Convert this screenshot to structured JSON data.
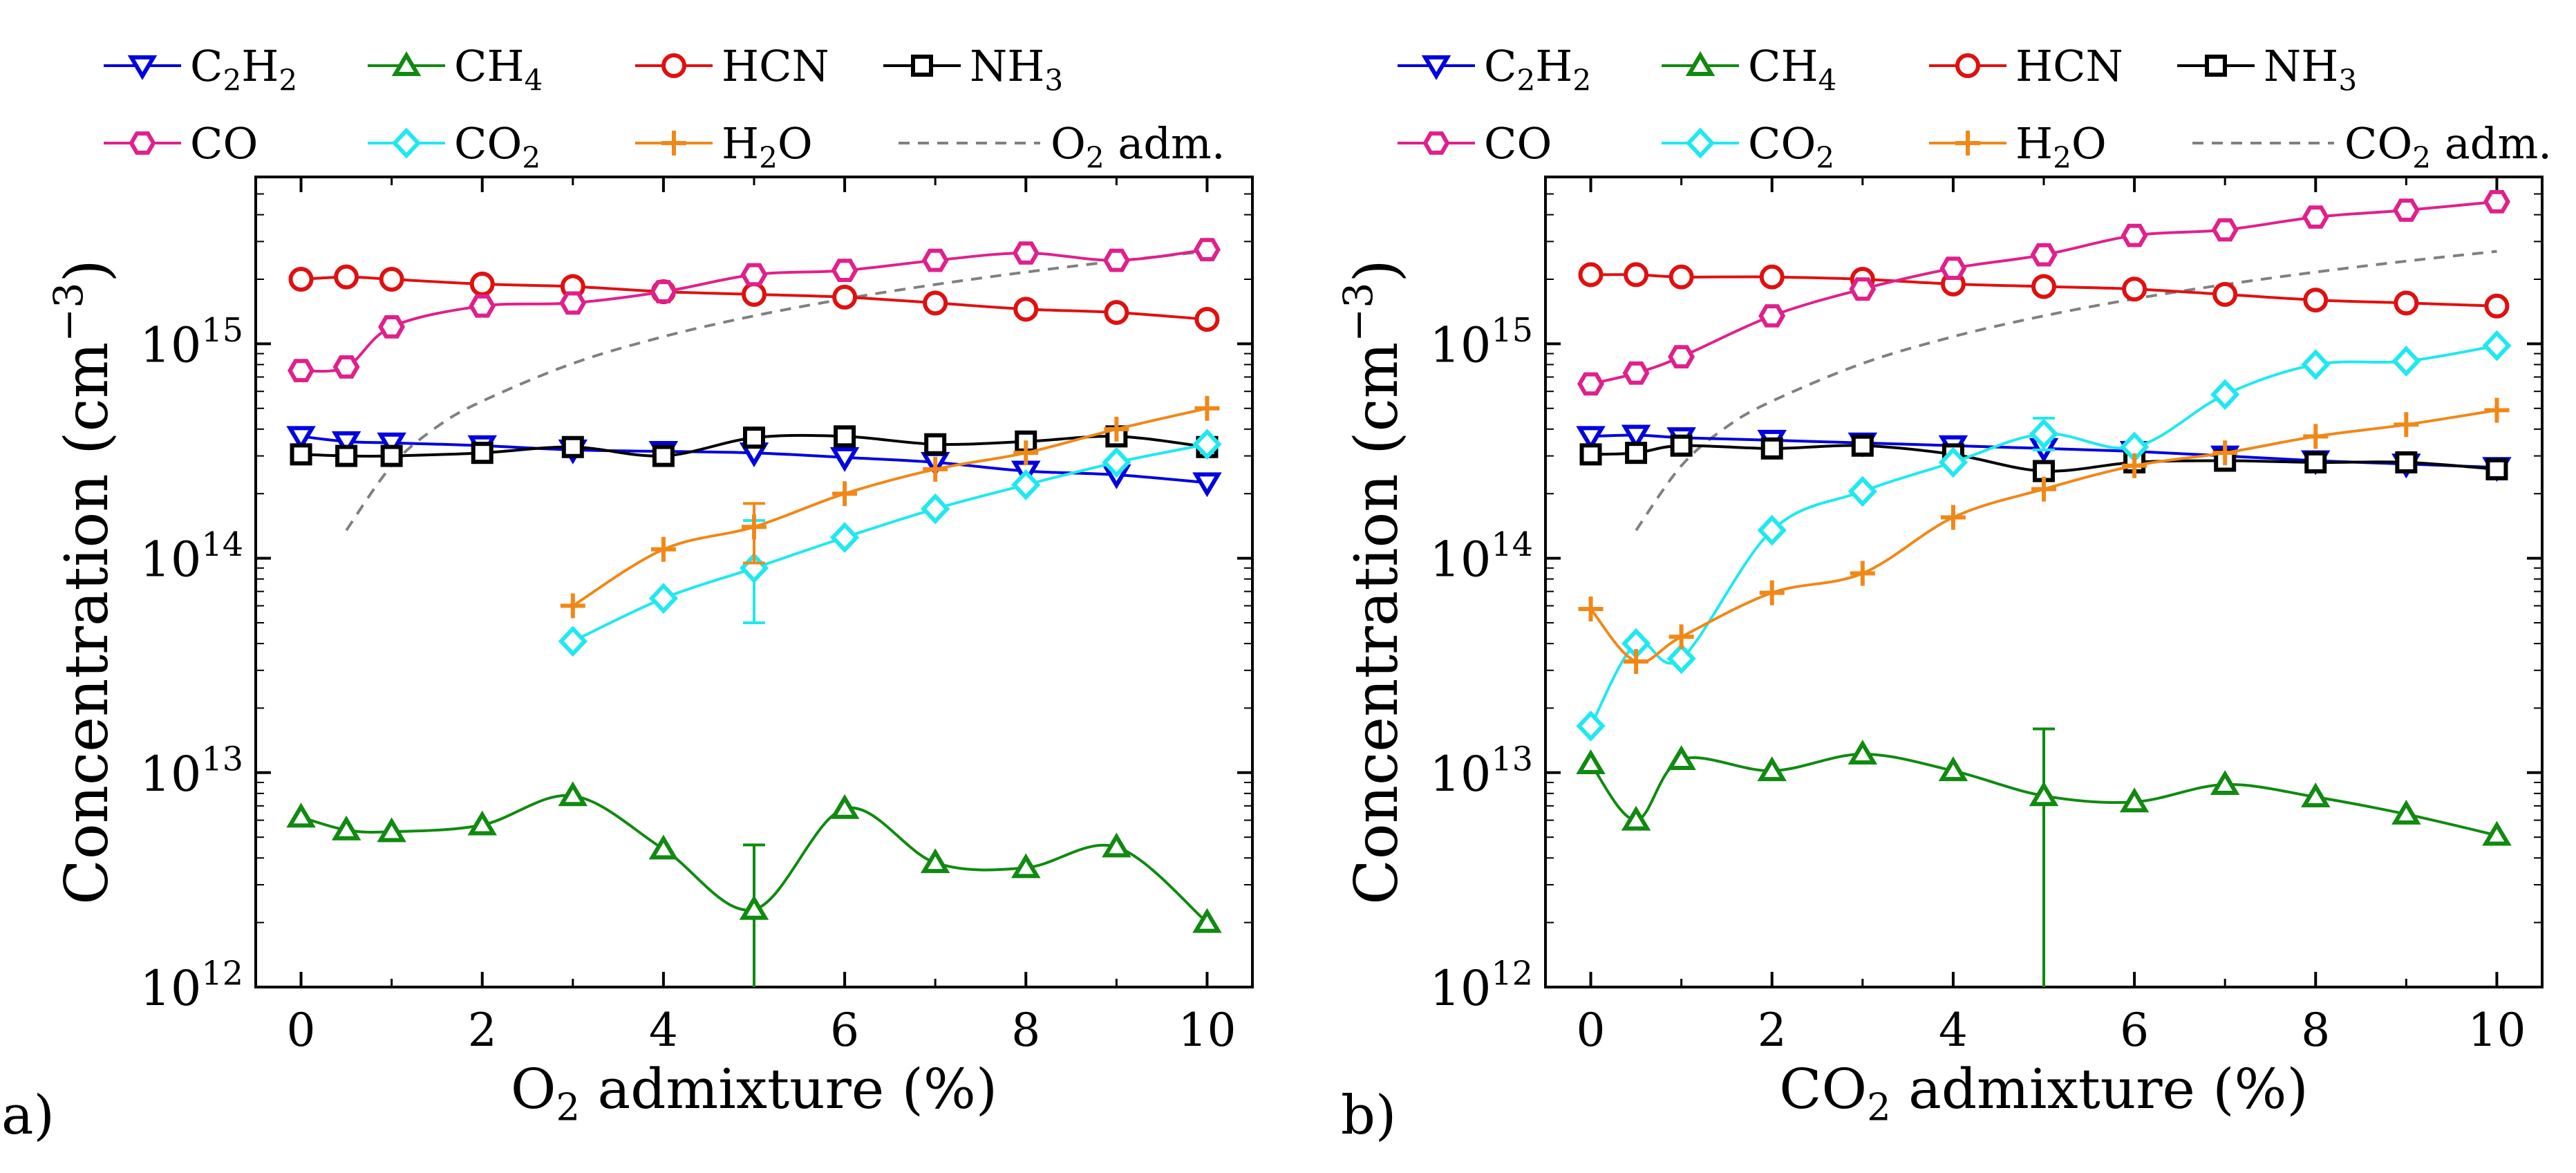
{
  "colors": {
    "C2H2": "#0000e0",
    "CH4": "#108a10",
    "HCN": "#e01010",
    "NH3": "#000000",
    "CO": "#e0208c",
    "CO2": "#20e8f0",
    "H2O": "#f08818",
    "adm": "#808080"
  },
  "legend": {
    "row1": [
      {
        "key": "C2H2",
        "base": "C",
        "sub1": "2",
        "mid": "H",
        "sub2": "2",
        "marker": "triangle-down"
      },
      {
        "key": "CH4",
        "base": "CH",
        "sub1": "4",
        "mid": "",
        "sub2": "",
        "marker": "triangle-up"
      },
      {
        "key": "HCN",
        "base": "HCN",
        "sub1": "",
        "mid": "",
        "sub2": "",
        "marker": "circle"
      },
      {
        "key": "NH3",
        "base": "NH",
        "sub1": "3",
        "mid": "",
        "sub2": "",
        "marker": "square"
      }
    ],
    "row2": [
      {
        "key": "CO",
        "base": "CO",
        "sub1": "",
        "mid": "",
        "sub2": "",
        "marker": "hexagon"
      },
      {
        "key": "CO2",
        "base": "CO",
        "sub1": "2",
        "mid": "",
        "sub2": "",
        "marker": "diamond"
      },
      {
        "key": "H2O",
        "base": "H",
        "sub1": "2",
        "mid": "O",
        "sub2": "",
        "marker": "plus"
      }
    ]
  },
  "chart_data": [
    {
      "type": "line",
      "panel_label": "a)",
      "xlabel": {
        "base": "O",
        "sub": "2",
        "rest": " admixture (%)"
      },
      "ylabel": {
        "base": "Concentration (cm",
        "sup": "−3",
        "rest": ")"
      },
      "adm_label": {
        "base": "O",
        "sub": "2",
        "rest": " adm."
      },
      "xlim": [
        -0.5,
        10.5
      ],
      "ylim": [
        1000000000000.0,
        6000000000000000.0
      ],
      "yscale": "log",
      "xticks": [
        0,
        2,
        4,
        6,
        8,
        10
      ],
      "yticks": [
        {
          "mant": "10",
          "exp": "12",
          "v": 1000000000000.0
        },
        {
          "mant": "10",
          "exp": "13",
          "v": 10000000000000.0
        },
        {
          "mant": "10",
          "exp": "14",
          "v": 100000000000000.0
        },
        {
          "mant": "10",
          "exp": "15",
          "v": 1000000000000000.0
        }
      ],
      "series": [
        {
          "name": "C2H2",
          "x": [
            0,
            0.5,
            1,
            2,
            3,
            4,
            5,
            6,
            7,
            8,
            9,
            10
          ],
          "values": [
            370000000000000.0,
            350000000000000.0,
            345000000000000.0,
            335000000000000.0,
            320000000000000.0,
            315000000000000.0,
            310000000000000.0,
            295000000000000.0,
            280000000000000.0,
            255000000000000.0,
            245000000000000.0,
            225000000000000.0
          ]
        },
        {
          "name": "CH4",
          "x": [
            0,
            0.5,
            1,
            2,
            3,
            4,
            5,
            6,
            7,
            8,
            9,
            10
          ],
          "values": [
            6200000000000.0,
            5400000000000.0,
            5300000000000.0,
            5700000000000.0,
            7800000000000.0,
            4400000000000.0,
            2300000000000.0,
            6800000000000.0,
            3800000000000.0,
            3600000000000.0,
            4500000000000.0,
            2000000000000.0
          ],
          "errorbars": [
            {
              "x": 5,
              "low": 1000000000000.0,
              "high": 4600000000000.0
            }
          ]
        },
        {
          "name": "HCN",
          "x": [
            0,
            0.5,
            1,
            2,
            3,
            4,
            5,
            6,
            7,
            8,
            9,
            10
          ],
          "values": [
            2000000000000000.0,
            2050000000000000.0,
            2000000000000000.0,
            1900000000000000.0,
            1850000000000000.0,
            1750000000000000.0,
            1700000000000000.0,
            1650000000000000.0,
            1550000000000000.0,
            1450000000000000.0,
            1400000000000000.0,
            1300000000000000.0
          ]
        },
        {
          "name": "NH3",
          "x": [
            0,
            0.5,
            1,
            2,
            3,
            4,
            5,
            6,
            7,
            8,
            9,
            10
          ],
          "values": [
            305000000000000.0,
            300000000000000.0,
            300000000000000.0,
            310000000000000.0,
            330000000000000.0,
            300000000000000.0,
            365000000000000.0,
            370000000000000.0,
            340000000000000.0,
            350000000000000.0,
            370000000000000.0,
            330000000000000.0
          ]
        },
        {
          "name": "CO",
          "x": [
            0,
            0.5,
            1,
            2,
            3,
            4,
            5,
            6,
            7,
            8,
            9,
            10
          ],
          "values": [
            750000000000000.0,
            780000000000000.0,
            1200000000000000.0,
            1500000000000000.0,
            1550000000000000.0,
            1750000000000000.0,
            2100000000000000.0,
            2200000000000000.0,
            2450000000000000.0,
            2650000000000000.0,
            2450000000000000.0,
            2750000000000000.0
          ]
        },
        {
          "name": "CO2",
          "x": [
            3,
            4,
            5,
            6,
            7,
            8,
            9,
            10
          ],
          "values": [
            41000000000000.0,
            65000000000000.0,
            90000000000000.0,
            125000000000000.0,
            170000000000000.0,
            220000000000000.0,
            280000000000000.0,
            340000000000000.0
          ],
          "errorbars": [
            {
              "x": 5,
              "low": 50000000000000.0,
              "high": 150000000000000.0
            }
          ]
        },
        {
          "name": "H2O",
          "x": [
            3,
            4,
            5,
            6,
            7,
            8,
            9,
            10
          ],
          "values": [
            60000000000000.0,
            110000000000000.0,
            140000000000000.0,
            200000000000000.0,
            260000000000000.0,
            310000000000000.0,
            400000000000000.0,
            500000000000000.0
          ],
          "errorbars": [
            {
              "x": 5,
              "low": 95000000000000.0,
              "high": 180000000000000.0
            }
          ]
        }
      ],
      "adm_curve": {
        "x": [
          0.5,
          1,
          1.5,
          2,
          3,
          4,
          5,
          6,
          7,
          8,
          9,
          10
        ],
        "values": [
          135000000000000.0,
          270000000000000.0,
          410000000000000.0,
          540000000000000.0,
          810000000000000.0,
          1080000000000000.0,
          1350000000000000.0,
          1620000000000000.0,
          1890000000000000.0,
          2160000000000000.0,
          2430000000000000.0,
          2700000000000000.0
        ]
      }
    },
    {
      "type": "line",
      "panel_label": "b)",
      "xlabel": {
        "base": "CO",
        "sub": "2",
        "rest": " admixture (%)"
      },
      "ylabel": {
        "base": "Concentration (cm",
        "sup": "−3",
        "rest": ")"
      },
      "adm_label": {
        "base": "CO",
        "sub": "2",
        "rest": " adm."
      },
      "xlim": [
        -0.5,
        10.5
      ],
      "ylim": [
        1000000000000.0,
        6000000000000000.0
      ],
      "yscale": "log",
      "xticks": [
        0,
        2,
        4,
        6,
        8,
        10
      ],
      "yticks": [
        {
          "mant": "10",
          "exp": "12",
          "v": 1000000000000.0
        },
        {
          "mant": "10",
          "exp": "13",
          "v": 10000000000000.0
        },
        {
          "mant": "10",
          "exp": "14",
          "v": 100000000000000.0
        },
        {
          "mant": "10",
          "exp": "15",
          "v": 1000000000000000.0
        }
      ],
      "series": [
        {
          "name": "C2H2",
          "x": [
            0,
            0.5,
            1,
            2,
            3,
            4,
            5,
            6,
            7,
            8,
            9,
            10
          ],
          "values": [
            370000000000000.0,
            375000000000000.0,
            365000000000000.0,
            355000000000000.0,
            345000000000000.0,
            335000000000000.0,
            325000000000000.0,
            315000000000000.0,
            300000000000000.0,
            285000000000000.0,
            275000000000000.0,
            265000000000000.0
          ]
        },
        {
          "name": "CH4",
          "x": [
            0,
            0.5,
            1,
            2,
            3,
            4,
            5,
            6,
            7,
            8,
            9,
            10
          ],
          "values": [
            11000000000000.0,
            6000000000000.0,
            11500000000000.0,
            10200000000000.0,
            12200000000000.0,
            10200000000000.0,
            7800000000000.0,
            7300000000000.0,
            8800000000000.0,
            7700000000000.0,
            6400000000000.0,
            5100000000000.0
          ],
          "errorbars": [
            {
              "x": 5,
              "low": 1000000000000.0,
              "high": 16000000000000.0
            }
          ]
        },
        {
          "name": "HCN",
          "x": [
            0,
            0.5,
            1,
            2,
            3,
            4,
            5,
            6,
            7,
            8,
            9,
            10
          ],
          "values": [
            2100000000000000.0,
            2100000000000000.0,
            2050000000000000.0,
            2050000000000000.0,
            2000000000000000.0,
            1900000000000000.0,
            1850000000000000.0,
            1800000000000000.0,
            1700000000000000.0,
            1600000000000000.0,
            1550000000000000.0,
            1500000000000000.0
          ]
        },
        {
          "name": "NH3",
          "x": [
            0,
            0.5,
            1,
            2,
            3,
            4,
            5,
            6,
            7,
            8,
            9,
            10
          ],
          "values": [
            305000000000000.0,
            310000000000000.0,
            335000000000000.0,
            325000000000000.0,
            335000000000000.0,
            305000000000000.0,
            255000000000000.0,
            280000000000000.0,
            285000000000000.0,
            280000000000000.0,
            280000000000000.0,
            260000000000000.0
          ]
        },
        {
          "name": "CO",
          "x": [
            0,
            0.5,
            1,
            2,
            3,
            4,
            5,
            6,
            7,
            8,
            9,
            10
          ],
          "values": [
            650000000000000.0,
            730000000000000.0,
            870000000000000.0,
            1350000000000000.0,
            1800000000000000.0,
            2250000000000000.0,
            2600000000000000.0,
            3200000000000000.0,
            3400000000000000.0,
            3900000000000000.0,
            4200000000000000.0,
            4600000000000000.0
          ]
        },
        {
          "name": "CO2",
          "x": [
            0,
            0.5,
            1,
            2,
            3,
            4,
            5,
            6,
            7,
            8,
            9,
            10
          ],
          "values": [
            16500000000000.0,
            40000000000000.0,
            34000000000000.0,
            135000000000000.0,
            205000000000000.0,
            280000000000000.0,
            380000000000000.0,
            330000000000000.0,
            580000000000000.0,
            800000000000000.0,
            830000000000000.0,
            980000000000000.0
          ],
          "errorbars": [
            {
              "x": 5,
              "low": 320000000000000.0,
              "high": 450000000000000.0
            }
          ]
        },
        {
          "name": "H2O",
          "x": [
            0,
            0.5,
            1,
            2,
            3,
            4,
            5,
            6,
            7,
            8,
            9,
            10
          ],
          "values": [
            58000000000000.0,
            33000000000000.0,
            43000000000000.0,
            69000000000000.0,
            85000000000000.0,
            155000000000000.0,
            210000000000000.0,
            270000000000000.0,
            310000000000000.0,
            370000000000000.0,
            420000000000000.0,
            490000000000000.0
          ]
        }
      ],
      "adm_curve": {
        "x": [
          0.5,
          1,
          1.5,
          2,
          3,
          4,
          5,
          6,
          7,
          8,
          9,
          10
        ],
        "values": [
          135000000000000.0,
          270000000000000.0,
          410000000000000.0,
          540000000000000.0,
          810000000000000.0,
          1080000000000000.0,
          1350000000000000.0,
          1620000000000000.0,
          1890000000000000.0,
          2160000000000000.0,
          2430000000000000.0,
          2700000000000000.0
        ]
      }
    }
  ]
}
